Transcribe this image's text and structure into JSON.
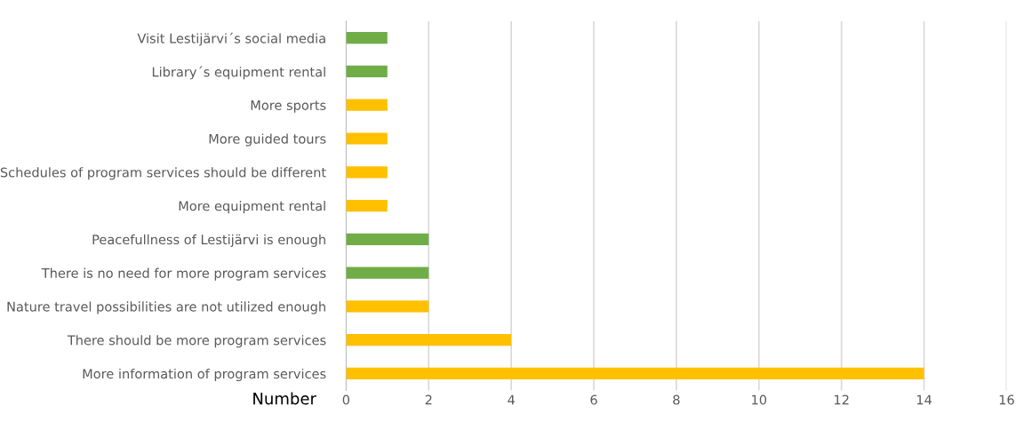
{
  "chart_data": {
    "type": "bar",
    "orientation": "horizontal",
    "xlabel": "Number",
    "categories": [
      "Visit Lestijärvi´s social media",
      "Library´s equipment rental",
      "More sports",
      "More guided tours",
      "Schedules of program services should be different",
      "More equipment rental",
      "Peacefullness of Lestijärvi is enough",
      "There is no need for more program services",
      "Nature travel possibilities are not utilized enough",
      "There should be more program services",
      "More information of program services"
    ],
    "values": [
      1,
      1,
      1,
      1,
      1,
      1,
      2,
      2,
      2,
      4,
      14
    ],
    "colors": [
      "#70ad47",
      "#70ad47",
      "#ffc000",
      "#ffc000",
      "#ffc000",
      "#ffc000",
      "#70ad47",
      "#70ad47",
      "#ffc000",
      "#ffc000",
      "#ffc000"
    ],
    "xlim": [
      0,
      16
    ],
    "xticks": [
      0,
      2,
      4,
      6,
      8,
      10,
      12,
      14,
      16
    ],
    "grid": "x",
    "legend": false
  }
}
